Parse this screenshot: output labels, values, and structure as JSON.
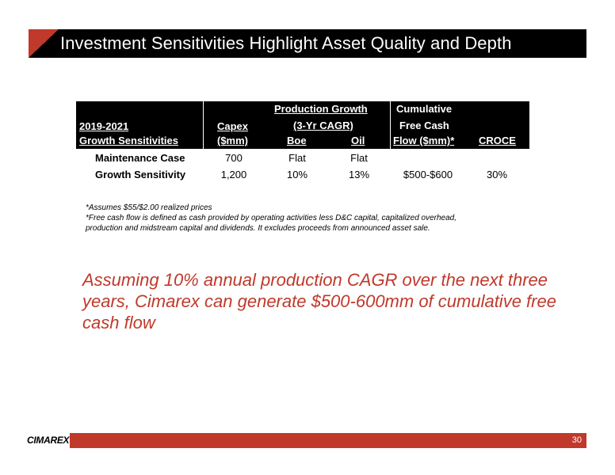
{
  "title": "Investment Sensitivities Highlight Asset Quality and Depth",
  "table": {
    "headers": {
      "period_line1": "2019-2021",
      "period_line2": "Growth Sensitivities",
      "capex_line1": "Capex",
      "capex_line2": "($mm)",
      "prod_growth": "Production Growth",
      "cagr": "(3-Yr CAGR)",
      "boe": "Boe",
      "oil": "Oil",
      "fcf_line1": "Cumulative",
      "fcf_line2": "Free Cash",
      "fcf_line3": "Flow ($mm)*",
      "croce": "CROCE"
    },
    "rows": [
      {
        "label": "Maintenance Case",
        "capex": "700",
        "boe": "Flat",
        "oil": "Flat",
        "fcf": "",
        "croce": ""
      },
      {
        "label": "Growth Sensitivity",
        "capex": "1,200",
        "boe": "10%",
        "oil": "13%",
        "fcf": "$500-$600",
        "croce": "30%"
      }
    ]
  },
  "footnotes": [
    "*Assumes $55/$2.00 realized prices",
    "*Free cash flow is defined as cash provided by operating activities less D&C capital, capitalized overhead,",
    "production and midstream capital and dividends.  It excludes proceeds from announced asset sale."
  ],
  "callout": "Assuming 10% annual production CAGR over the next three years, Cimarex can generate $500-600mm of cumulative free cash flow",
  "footer": {
    "logo": "CIMAREX",
    "page_number": "30"
  },
  "colors": {
    "accent": "#c0392b",
    "header_bg": "#000000"
  }
}
